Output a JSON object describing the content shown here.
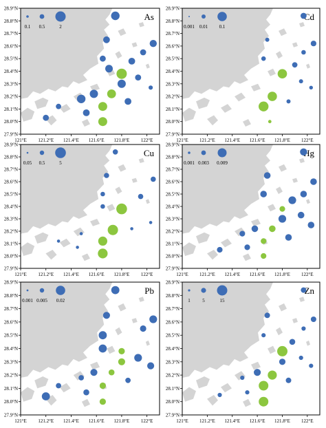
{
  "figure": {
    "lat_ticks": [
      "27.9°N",
      "28.0°N",
      "28.1°N",
      "28.2°N",
      "28.3°N",
      "28.4°N",
      "28.5°N",
      "28.6°N",
      "28.7°N",
      "28.8°N",
      "28.9°N"
    ],
    "lon_ticks": [
      "121°E",
      "121.2°E",
      "121.4°E",
      "121.6°E",
      "121.8°E",
      "122°E"
    ],
    "colors": {
      "land": "#d4d4d4",
      "sea": "#ffffff",
      "blue": "#3e6db5",
      "green": "#8cc63f",
      "frame": "#000000"
    },
    "icons": [
      "station-bubble-blue",
      "station-bubble-green",
      "island-shape"
    ]
  },
  "panels": [
    {
      "element": "As",
      "legend": [
        "0.1",
        "0.5",
        "2"
      ],
      "stations": [
        {
          "lon": 121.75,
          "lat": 28.84,
          "value": 1.0,
          "group": "blue"
        },
        {
          "lon": 121.68,
          "lat": 28.65,
          "value": 0.5,
          "group": "blue"
        },
        {
          "lon": 122.05,
          "lat": 28.62,
          "value": 0.6,
          "group": "blue"
        },
        {
          "lon": 121.97,
          "lat": 28.55,
          "value": 0.4,
          "group": "blue"
        },
        {
          "lon": 121.65,
          "lat": 28.5,
          "value": 0.4,
          "group": "blue"
        },
        {
          "lon": 121.88,
          "lat": 28.48,
          "value": 0.5,
          "group": "blue"
        },
        {
          "lon": 121.7,
          "lat": 28.42,
          "value": 0.7,
          "group": "blue"
        },
        {
          "lon": 121.8,
          "lat": 28.38,
          "value": 2.0,
          "group": "green"
        },
        {
          "lon": 121.93,
          "lat": 28.35,
          "value": 0.4,
          "group": "blue"
        },
        {
          "lon": 121.8,
          "lat": 28.3,
          "value": 0.9,
          "group": "blue"
        },
        {
          "lon": 122.03,
          "lat": 28.27,
          "value": 0.2,
          "group": "blue"
        },
        {
          "lon": 121.72,
          "lat": 28.22,
          "value": 1.1,
          "group": "green"
        },
        {
          "lon": 121.58,
          "lat": 28.22,
          "value": 0.9,
          "group": "blue"
        },
        {
          "lon": 121.48,
          "lat": 28.18,
          "value": 1.0,
          "group": "blue"
        },
        {
          "lon": 121.85,
          "lat": 28.16,
          "value": 0.5,
          "group": "blue"
        },
        {
          "lon": 121.65,
          "lat": 28.12,
          "value": 1.2,
          "group": "green"
        },
        {
          "lon": 121.3,
          "lat": 28.12,
          "value": 0.3,
          "group": "blue"
        },
        {
          "lon": 121.52,
          "lat": 28.07,
          "value": 0.5,
          "group": "blue"
        },
        {
          "lon": 121.2,
          "lat": 28.03,
          "value": 0.4,
          "group": "blue"
        },
        {
          "lon": 121.65,
          "lat": 28.0,
          "value": 1.2,
          "group": "green"
        }
      ]
    },
    {
      "element": "Cd",
      "legend": [
        "0.001",
        "0.01",
        "0.1"
      ],
      "stations": [
        {
          "lon": 121.97,
          "lat": 28.84,
          "value": 0.015,
          "group": "blue"
        },
        {
          "lon": 121.68,
          "lat": 28.65,
          "value": 0.005,
          "group": "blue"
        },
        {
          "lon": 122.05,
          "lat": 28.62,
          "value": 0.012,
          "group": "blue"
        },
        {
          "lon": 121.97,
          "lat": 28.55,
          "value": 0.006,
          "group": "blue"
        },
        {
          "lon": 121.65,
          "lat": 28.5,
          "value": 0.006,
          "group": "blue"
        },
        {
          "lon": 121.9,
          "lat": 28.45,
          "value": 0.01,
          "group": "blue"
        },
        {
          "lon": 121.8,
          "lat": 28.38,
          "value": 0.1,
          "group": "green"
        },
        {
          "lon": 121.95,
          "lat": 28.32,
          "value": 0.005,
          "group": "blue"
        },
        {
          "lon": 121.72,
          "lat": 28.2,
          "value": 0.1,
          "group": "green"
        },
        {
          "lon": 121.65,
          "lat": 28.12,
          "value": 0.14,
          "group": "green"
        },
        {
          "lon": 121.7,
          "lat": 28.0,
          "value": 0.003,
          "group": "green"
        },
        {
          "lon": 122.03,
          "lat": 28.27,
          "value": 0.004,
          "group": "blue"
        },
        {
          "lon": 121.85,
          "lat": 28.16,
          "value": 0.005,
          "group": "blue"
        }
      ]
    },
    {
      "element": "Cu",
      "legend": [
        "0.05",
        "0.5",
        "5"
      ],
      "stations": [
        {
          "lon": 121.75,
          "lat": 28.84,
          "value": 0.3,
          "group": "blue"
        },
        {
          "lon": 121.68,
          "lat": 28.65,
          "value": 0.3,
          "group": "blue"
        },
        {
          "lon": 122.05,
          "lat": 28.62,
          "value": 0.3,
          "group": "blue"
        },
        {
          "lon": 121.65,
          "lat": 28.5,
          "value": 0.2,
          "group": "blue"
        },
        {
          "lon": 121.95,
          "lat": 28.48,
          "value": 0.3,
          "group": "blue"
        },
        {
          "lon": 121.8,
          "lat": 28.38,
          "value": 5.0,
          "group": "green"
        },
        {
          "lon": 121.65,
          "lat": 28.4,
          "value": 0.2,
          "group": "blue"
        },
        {
          "lon": 121.73,
          "lat": 28.21,
          "value": 4.0,
          "group": "green"
        },
        {
          "lon": 121.65,
          "lat": 28.12,
          "value": 2.2,
          "group": "green"
        },
        {
          "lon": 121.65,
          "lat": 28.02,
          "value": 3.0,
          "group": "green"
        },
        {
          "lon": 121.88,
          "lat": 28.22,
          "value": 0.1,
          "group": "blue"
        },
        {
          "lon": 121.48,
          "lat": 28.18,
          "value": 0.1,
          "group": "blue"
        },
        {
          "lon": 121.45,
          "lat": 28.07,
          "value": 0.1,
          "group": "blue"
        },
        {
          "lon": 121.3,
          "lat": 28.12,
          "value": 0.1,
          "group": "blue"
        },
        {
          "lon": 122.03,
          "lat": 28.27,
          "value": 0.1,
          "group": "blue"
        }
      ]
    },
    {
      "element": "Hg",
      "legend": [
        "0.001",
        "0.003",
        "0.009"
      ],
      "stations": [
        {
          "lon": 121.97,
          "lat": 28.84,
          "value": 0.005,
          "group": "blue"
        },
        {
          "lon": 121.68,
          "lat": 28.65,
          "value": 0.004,
          "group": "blue"
        },
        {
          "lon": 122.05,
          "lat": 28.6,
          "value": 0.004,
          "group": "blue"
        },
        {
          "lon": 121.97,
          "lat": 28.5,
          "value": 0.004,
          "group": "blue"
        },
        {
          "lon": 121.65,
          "lat": 28.5,
          "value": 0.004,
          "group": "blue"
        },
        {
          "lon": 121.88,
          "lat": 28.45,
          "value": 0.006,
          "group": "blue"
        },
        {
          "lon": 121.8,
          "lat": 28.38,
          "value": 0.003,
          "group": "green"
        },
        {
          "lon": 121.95,
          "lat": 28.33,
          "value": 0.004,
          "group": "blue"
        },
        {
          "lon": 121.8,
          "lat": 28.3,
          "value": 0.006,
          "group": "blue"
        },
        {
          "lon": 122.03,
          "lat": 28.25,
          "value": 0.004,
          "group": "blue"
        },
        {
          "lon": 121.72,
          "lat": 28.22,
          "value": 0.004,
          "group": "green"
        },
        {
          "lon": 121.58,
          "lat": 28.22,
          "value": 0.004,
          "group": "blue"
        },
        {
          "lon": 121.48,
          "lat": 28.18,
          "value": 0.003,
          "group": "blue"
        },
        {
          "lon": 121.85,
          "lat": 28.15,
          "value": 0.004,
          "group": "blue"
        },
        {
          "lon": 121.65,
          "lat": 28.12,
          "value": 0.003,
          "group": "green"
        },
        {
          "lon": 121.52,
          "lat": 28.07,
          "value": 0.003,
          "group": "blue"
        },
        {
          "lon": 121.3,
          "lat": 28.05,
          "value": 0.003,
          "group": "blue"
        },
        {
          "lon": 121.65,
          "lat": 28.0,
          "value": 0.003,
          "group": "green"
        }
      ]
    },
    {
      "element": "Pb",
      "legend": [
        "0.001",
        "0.005",
        "0.02"
      ],
      "stations": [
        {
          "lon": 121.75,
          "lat": 28.84,
          "value": 0.012,
          "group": "blue"
        },
        {
          "lon": 121.68,
          "lat": 28.65,
          "value": 0.008,
          "group": "blue"
        },
        {
          "lon": 122.05,
          "lat": 28.62,
          "value": 0.01,
          "group": "blue"
        },
        {
          "lon": 121.97,
          "lat": 28.55,
          "value": 0.006,
          "group": "blue"
        },
        {
          "lon": 121.65,
          "lat": 28.5,
          "value": 0.012,
          "group": "blue"
        },
        {
          "lon": 121.65,
          "lat": 28.4,
          "value": 0.012,
          "group": "blue"
        },
        {
          "lon": 121.8,
          "lat": 28.38,
          "value": 0.006,
          "group": "green"
        },
        {
          "lon": 121.93,
          "lat": 28.33,
          "value": 0.01,
          "group": "blue"
        },
        {
          "lon": 121.8,
          "lat": 28.3,
          "value": 0.008,
          "group": "green"
        },
        {
          "lon": 122.03,
          "lat": 28.27,
          "value": 0.008,
          "group": "blue"
        },
        {
          "lon": 121.72,
          "lat": 28.22,
          "value": 0.005,
          "group": "green"
        },
        {
          "lon": 121.58,
          "lat": 28.22,
          "value": 0.008,
          "group": "blue"
        },
        {
          "lon": 121.48,
          "lat": 28.18,
          "value": 0.004,
          "group": "blue"
        },
        {
          "lon": 121.85,
          "lat": 28.16,
          "value": 0.004,
          "group": "blue"
        },
        {
          "lon": 121.65,
          "lat": 28.12,
          "value": 0.006,
          "group": "green"
        },
        {
          "lon": 121.3,
          "lat": 28.12,
          "value": 0.004,
          "group": "blue"
        },
        {
          "lon": 121.52,
          "lat": 28.07,
          "value": 0.005,
          "group": "blue"
        },
        {
          "lon": 121.2,
          "lat": 28.04,
          "value": 0.012,
          "group": "blue"
        },
        {
          "lon": 121.65,
          "lat": 28.0,
          "value": 0.006,
          "group": "green"
        }
      ]
    },
    {
      "element": "Zn",
      "legend": [
        "1",
        "5",
        "15"
      ],
      "stations": [
        {
          "lon": 121.97,
          "lat": 28.84,
          "value": 3.0,
          "group": "blue"
        },
        {
          "lon": 121.68,
          "lat": 28.65,
          "value": 3.0,
          "group": "blue"
        },
        {
          "lon": 122.05,
          "lat": 28.62,
          "value": 3.0,
          "group": "blue"
        },
        {
          "lon": 121.97,
          "lat": 28.55,
          "value": 2.0,
          "group": "blue"
        },
        {
          "lon": 121.65,
          "lat": 28.5,
          "value": 2.0,
          "group": "blue"
        },
        {
          "lon": 121.88,
          "lat": 28.45,
          "value": 3.5,
          "group": "blue"
        },
        {
          "lon": 121.8,
          "lat": 28.38,
          "value": 15.0,
          "group": "green"
        },
        {
          "lon": 121.95,
          "lat": 28.33,
          "value": 2.0,
          "group": "blue"
        },
        {
          "lon": 121.8,
          "lat": 28.3,
          "value": 4.0,
          "group": "blue"
        },
        {
          "lon": 122.03,
          "lat": 28.27,
          "value": 2.0,
          "group": "blue"
        },
        {
          "lon": 121.72,
          "lat": 28.2,
          "value": 10.0,
          "group": "green"
        },
        {
          "lon": 121.6,
          "lat": 28.22,
          "value": 5.0,
          "group": "blue"
        },
        {
          "lon": 121.48,
          "lat": 28.18,
          "value": 2.0,
          "group": "blue"
        },
        {
          "lon": 121.85,
          "lat": 28.16,
          "value": 3.0,
          "group": "blue"
        },
        {
          "lon": 121.65,
          "lat": 28.12,
          "value": 12.0,
          "group": "green"
        },
        {
          "lon": 121.52,
          "lat": 28.07,
          "value": 2.0,
          "group": "blue"
        },
        {
          "lon": 121.3,
          "lat": 28.05,
          "value": 2.0,
          "group": "blue"
        },
        {
          "lon": 121.65,
          "lat": 28.0,
          "value": 12.0,
          "group": "green"
        }
      ]
    }
  ]
}
